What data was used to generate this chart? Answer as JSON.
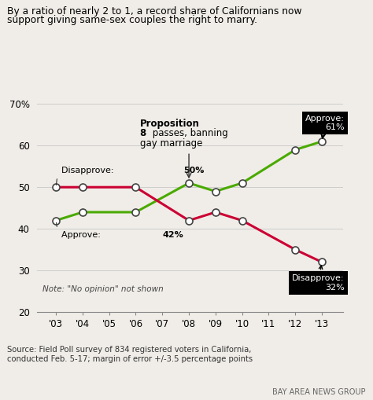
{
  "title_line1": "By a ratio of nearly 2 to 1, a record share of Californians now",
  "title_line2": "support giving same-sex couples the right to marry.",
  "years": [
    2003,
    2004,
    2005,
    2006,
    2007,
    2008,
    2009,
    2010,
    2011,
    2012,
    2013
  ],
  "approve": [
    42,
    44,
    null,
    44,
    null,
    51,
    49,
    51,
    null,
    59,
    61
  ],
  "disapprove": [
    50,
    50,
    null,
    50,
    null,
    42,
    44,
    42,
    null,
    35,
    32
  ],
  "approve_color": "#4aaa00",
  "disapprove_color": "#cc0033",
  "marker_facecolor": "white",
  "marker_edgecolor": "#444444",
  "ylim": [
    20,
    70
  ],
  "yticks": [
    20,
    30,
    40,
    50,
    60,
    70
  ],
  "xlabel_years": [
    "'03",
    "'04",
    "'05",
    "'06",
    "'07",
    "'08",
    "'09",
    "'10",
    "'11",
    "'12",
    "'13"
  ],
  "source_text": "Source: Field Poll survey of 834 registered voters in California,\nconducted Feb. 5-17; margin of error +/-3.5 percentage points",
  "credit_text": "BAY AREA NEWS GROUP",
  "note_text": "Note: \"No opinion\" not shown",
  "prop8_text_bold": "Proposition",
  "prop8_text_rest": "8 passes, banning\ngay marriage",
  "prop8_year": 2008,
  "prop8_value": 51,
  "background_color": "#f0ede8",
  "grid_color": "#cccccc"
}
